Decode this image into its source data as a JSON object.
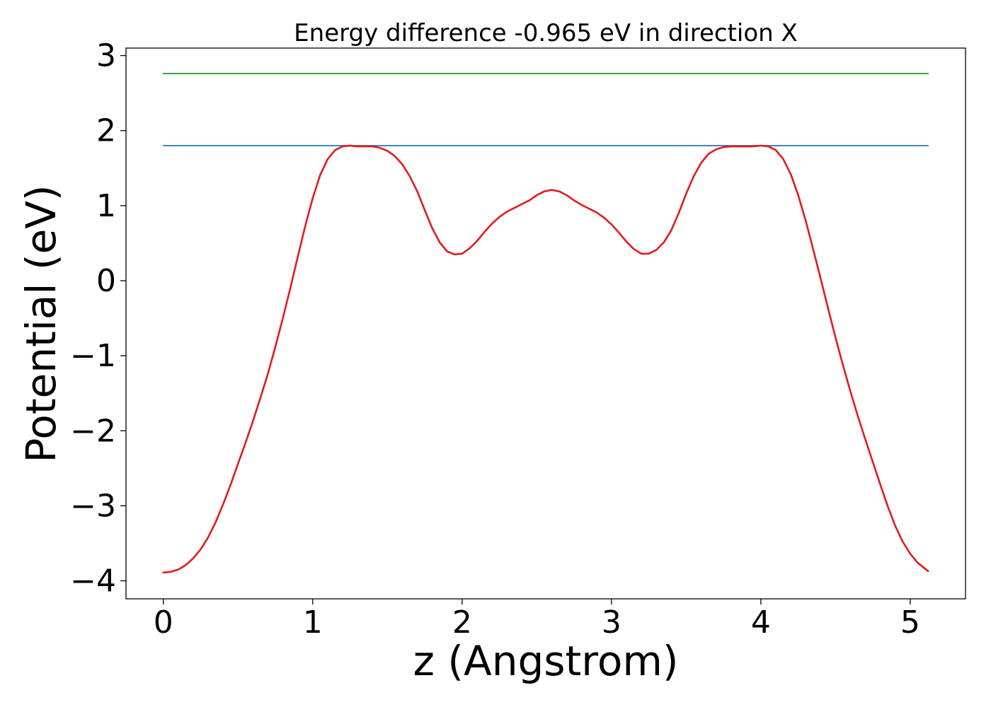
{
  "chart_data": {
    "type": "line",
    "title": "Energy difference -0.965 eV in direction X",
    "xlabel": "z (Angstrom)",
    "ylabel": "Potential (eV)",
    "xlim": [
      -0.25,
      5.37
    ],
    "ylim": [
      -4.24,
      3.1
    ],
    "x_ticks": [
      0,
      1,
      2,
      3,
      4,
      5
    ],
    "x_tick_labels": [
      "0",
      "1",
      "2",
      "3",
      "4",
      "5"
    ],
    "y_ticks": [
      3,
      2,
      1,
      0,
      -1,
      -2,
      -3,
      -4
    ],
    "y_tick_labels": [
      "3",
      "2",
      "1",
      "0",
      "−1",
      "−2",
      "−3",
      "−4"
    ],
    "grid": false,
    "legend": "none",
    "series": [
      {
        "color": "#2ca02c",
        "points": [
          [
            0,
            2.76
          ],
          [
            5.12,
            2.76
          ]
        ]
      },
      {
        "color": "#1f77b4",
        "points": [
          [
            0,
            1.8
          ],
          [
            5.12,
            1.8
          ]
        ]
      },
      {
        "color": "#e41a1c",
        "points": [
          [
            0.0,
            -3.89
          ],
          [
            0.05,
            -3.88
          ],
          [
            0.1,
            -3.85
          ],
          [
            0.15,
            -3.79
          ],
          [
            0.2,
            -3.7
          ],
          [
            0.25,
            -3.58
          ],
          [
            0.3,
            -3.42
          ],
          [
            0.35,
            -3.22
          ],
          [
            0.4,
            -2.98
          ],
          [
            0.45,
            -2.72
          ],
          [
            0.5,
            -2.44
          ],
          [
            0.55,
            -2.16
          ],
          [
            0.6,
            -1.87
          ],
          [
            0.65,
            -1.56
          ],
          [
            0.7,
            -1.24
          ],
          [
            0.75,
            -0.88
          ],
          [
            0.8,
            -0.5
          ],
          [
            0.85,
            -0.1
          ],
          [
            0.9,
            0.32
          ],
          [
            0.95,
            0.73
          ],
          [
            1.0,
            1.1
          ],
          [
            1.05,
            1.41
          ],
          [
            1.1,
            1.62
          ],
          [
            1.15,
            1.74
          ],
          [
            1.2,
            1.79
          ],
          [
            1.25,
            1.8
          ],
          [
            1.3,
            1.79
          ],
          [
            1.35,
            1.79
          ],
          [
            1.4,
            1.79
          ],
          [
            1.45,
            1.77
          ],
          [
            1.5,
            1.73
          ],
          [
            1.55,
            1.66
          ],
          [
            1.6,
            1.55
          ],
          [
            1.65,
            1.39
          ],
          [
            1.7,
            1.19
          ],
          [
            1.75,
            0.94
          ],
          [
            1.8,
            0.7
          ],
          [
            1.85,
            0.51
          ],
          [
            1.9,
            0.39
          ],
          [
            1.95,
            0.35
          ],
          [
            2.0,
            0.36
          ],
          [
            2.05,
            0.43
          ],
          [
            2.1,
            0.53
          ],
          [
            2.15,
            0.65
          ],
          [
            2.2,
            0.76
          ],
          [
            2.25,
            0.85
          ],
          [
            2.3,
            0.92
          ],
          [
            2.35,
            0.97
          ],
          [
            2.4,
            1.02
          ],
          [
            2.45,
            1.07
          ],
          [
            2.5,
            1.14
          ],
          [
            2.55,
            1.19
          ],
          [
            2.6,
            1.21
          ],
          [
            2.65,
            1.19
          ],
          [
            2.7,
            1.14
          ],
          [
            2.75,
            1.07
          ],
          [
            2.8,
            1.01
          ],
          [
            2.85,
            0.96
          ],
          [
            2.9,
            0.91
          ],
          [
            2.95,
            0.84
          ],
          [
            3.0,
            0.75
          ],
          [
            3.05,
            0.64
          ],
          [
            3.1,
            0.52
          ],
          [
            3.15,
            0.42
          ],
          [
            3.2,
            0.36
          ],
          [
            3.25,
            0.36
          ],
          [
            3.3,
            0.41
          ],
          [
            3.35,
            0.51
          ],
          [
            3.4,
            0.67
          ],
          [
            3.45,
            0.9
          ],
          [
            3.5,
            1.16
          ],
          [
            3.55,
            1.39
          ],
          [
            3.6,
            1.57
          ],
          [
            3.65,
            1.69
          ],
          [
            3.7,
            1.75
          ],
          [
            3.75,
            1.78
          ],
          [
            3.8,
            1.79
          ],
          [
            3.85,
            1.79
          ],
          [
            3.9,
            1.79
          ],
          [
            3.95,
            1.79
          ],
          [
            4.0,
            1.8
          ],
          [
            4.05,
            1.79
          ],
          [
            4.1,
            1.74
          ],
          [
            4.15,
            1.62
          ],
          [
            4.2,
            1.42
          ],
          [
            4.25,
            1.14
          ],
          [
            4.3,
            0.8
          ],
          [
            4.35,
            0.42
          ],
          [
            4.4,
            0.03
          ],
          [
            4.45,
            -0.37
          ],
          [
            4.5,
            -0.76
          ],
          [
            4.55,
            -1.13
          ],
          [
            4.6,
            -1.48
          ],
          [
            4.65,
            -1.81
          ],
          [
            4.7,
            -2.12
          ],
          [
            4.75,
            -2.42
          ],
          [
            4.8,
            -2.72
          ],
          [
            4.85,
            -3.01
          ],
          [
            4.9,
            -3.27
          ],
          [
            4.95,
            -3.48
          ],
          [
            5.0,
            -3.64
          ],
          [
            5.05,
            -3.76
          ],
          [
            5.1,
            -3.84
          ],
          [
            5.12,
            -3.87
          ]
        ]
      }
    ]
  }
}
